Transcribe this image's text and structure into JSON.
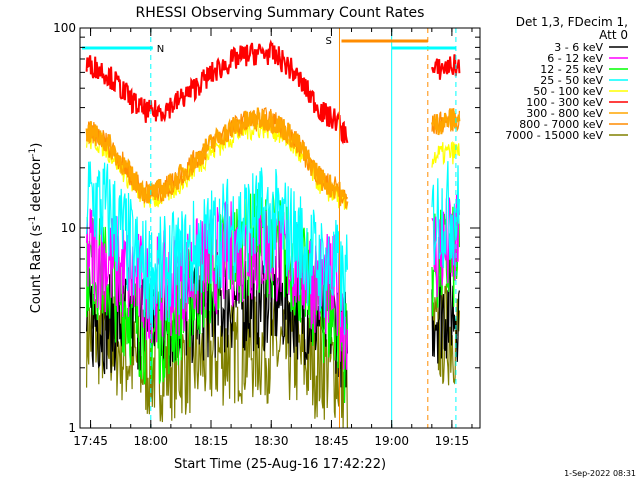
{
  "chart_data": {
    "type": "line",
    "title": "RHESSI Observing Summary Count Rates",
    "xlabel": "Start Time (25-Aug-16 17:42:22)",
    "ylabel": "Count Rate (s⁻¹ detector⁻¹)",
    "ylabel_main": "Count Rate (s",
    "ylabel_sup1": "-1",
    "ylabel_mid": " detector",
    "ylabel_sup2": "-1",
    "ylabel_end": ")",
    "y_scale": "log",
    "ylim": [
      1,
      100
    ],
    "xlim": [
      "17:42:22",
      "19:22:00"
    ],
    "y_ticks": [
      {
        "value": 1,
        "label": "1"
      },
      {
        "value": 10,
        "label": "10"
      },
      {
        "value": 100,
        "label": "100"
      }
    ],
    "x_ticks": [
      "17:45",
      "18:00",
      "18:15",
      "18:30",
      "18:45",
      "19:00",
      "19:15"
    ],
    "legend_title": [
      "Det 1,3, FDecim 1,",
      "Att 0"
    ],
    "legend_position": "right",
    "footer_date": "1-Sep-2022 08:31",
    "series": [
      {
        "name": "3 - 6 keV",
        "color": "#000000",
        "values": [
          3.5,
          3.5,
          4.5,
          3.5,
          2.8,
          4.0
        ]
      },
      {
        "name": "6 - 12 keV",
        "color": "#ff00ff",
        "values": [
          7.5,
          5.0,
          8.0,
          5.0,
          3.5,
          8.0
        ]
      },
      {
        "name": "12 - 25 keV",
        "color": "#00ff00",
        "values": [
          6.5,
          3.0,
          8.5,
          3.5,
          2.5,
          7.0
        ]
      },
      {
        "name": "25 - 50 keV",
        "color": "#00ffff",
        "values": [
          14,
          6,
          11,
          6,
          5,
          12
        ]
      },
      {
        "name": "50 - 100 keV",
        "color": "#ffff00",
        "values": [
          28,
          14,
          32,
          15,
          13,
          24
        ]
      },
      {
        "name": "100 - 300 keV",
        "color": "#ff0000",
        "values": [
          65,
          38,
          75,
          35,
          30,
          65
        ]
      },
      {
        "name": "300 - 800 keV",
        "color": "#ffa500",
        "values": [
          30,
          15,
          35,
          16,
          14,
          35
        ]
      },
      {
        "name": "800 - 7000 keV",
        "color": "#ff8c00",
        "values": [
          30,
          15,
          35,
          16,
          14,
          35
        ]
      },
      {
        "name": "7000 - 15000 keV",
        "color": "#808000",
        "values": [
          3.0,
          2.0,
          2.5,
          2.0,
          1.5,
          3.0
        ]
      }
    ],
    "markers": [
      {
        "label": "N",
        "color": "#00ffff",
        "x": "18:00"
      },
      {
        "label": "S",
        "color": "#ff8c00",
        "x": "18:48"
      }
    ]
  }
}
